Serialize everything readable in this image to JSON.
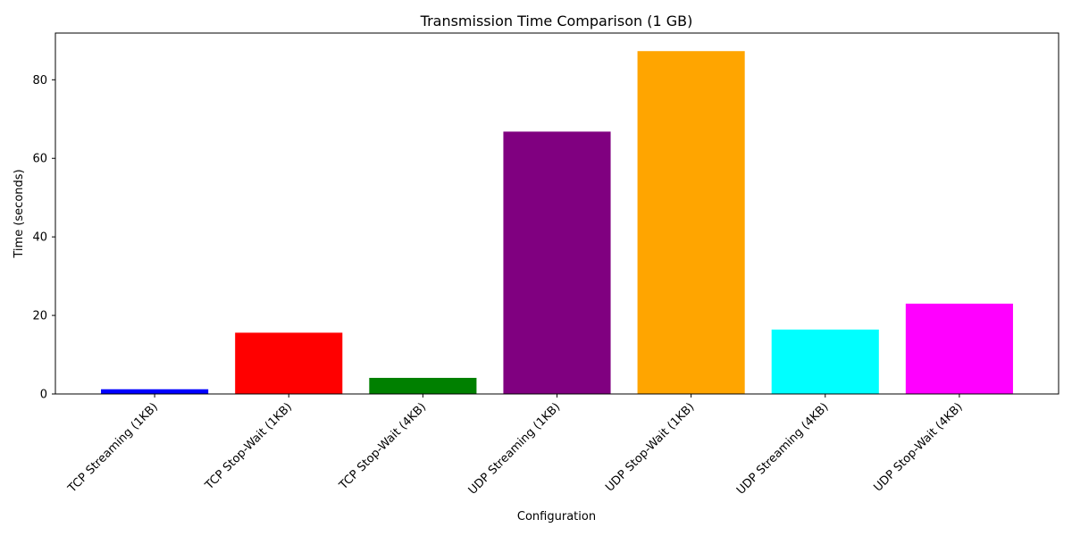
{
  "chart_data": {
    "type": "bar",
    "title": "Transmission Time Comparison (1 GB)",
    "xlabel": "Configuration",
    "ylabel": "Time (seconds)",
    "categories": [
      "TCP Streaming (1KB)",
      "TCP Stop-Wait (1KB)",
      "TCP Stop-Wait (4KB)",
      "UDP Streaming (1KB)",
      "UDP Stop-Wait (1KB)",
      "UDP Streaming (4KB)",
      "UDP Stop-Wait (4KB)"
    ],
    "values": [
      1.2,
      15.6,
      4.1,
      66.8,
      87.3,
      16.4,
      23.0
    ],
    "colors": [
      "#0000ff",
      "#ff0000",
      "#008000",
      "#800080",
      "#ffa500",
      "#00ffff",
      "#ff00ff"
    ],
    "ylim": [
      0,
      91.9
    ],
    "yticks": [
      0,
      20,
      40,
      60,
      80
    ],
    "grid": false,
    "legend": "none"
  }
}
